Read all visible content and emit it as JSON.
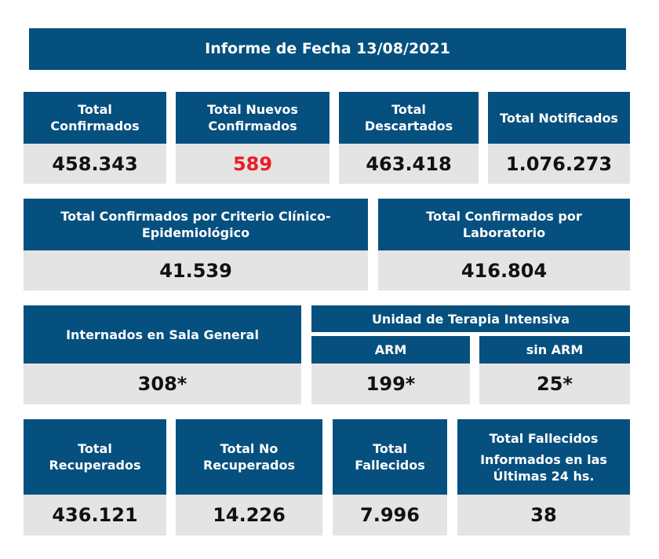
{
  "report_title": "Informe de Fecha 13/08/2021",
  "row1": [
    {
      "label": "Total\nConfirmados",
      "value": "458.343"
    },
    {
      "label": "Total Nuevos\nConfirmados",
      "value": "589"
    },
    {
      "label": "Total\nDescartados",
      "value": "463.418"
    },
    {
      "label": "Total Notificados",
      "value": "1.076.273"
    }
  ],
  "row2": [
    {
      "label": "Total Confirmados por Criterio Clínico-\nEpidemiológico",
      "value": "41.539"
    },
    {
      "label": "Total Confirmados por\nLaboratorio",
      "value": "416.804"
    }
  ],
  "row3": {
    "sala_general": {
      "label": "Internados en Sala General",
      "value": "308*"
    },
    "uti_title": "Unidad de Terapia Intensiva",
    "arm": {
      "label": "ARM",
      "value": "199*"
    },
    "sin_arm": {
      "label": "sin ARM",
      "value": "25*"
    }
  },
  "row4": [
    {
      "label": "Total\nRecuperados",
      "value": "436.121"
    },
    {
      "label": "Total No\nRecuperados",
      "value": "14.226"
    },
    {
      "label": "Total\nFallecidos",
      "value": "7.996"
    },
    {
      "label_line1": "Total Fallecidos",
      "label_line2": "Informados en las\nÚltimas 24 hs.",
      "value": "38"
    }
  ],
  "colors": {
    "header_bg": "#06507f",
    "value_bg": "#e4e4e5",
    "highlight": "#ee1c24"
  }
}
